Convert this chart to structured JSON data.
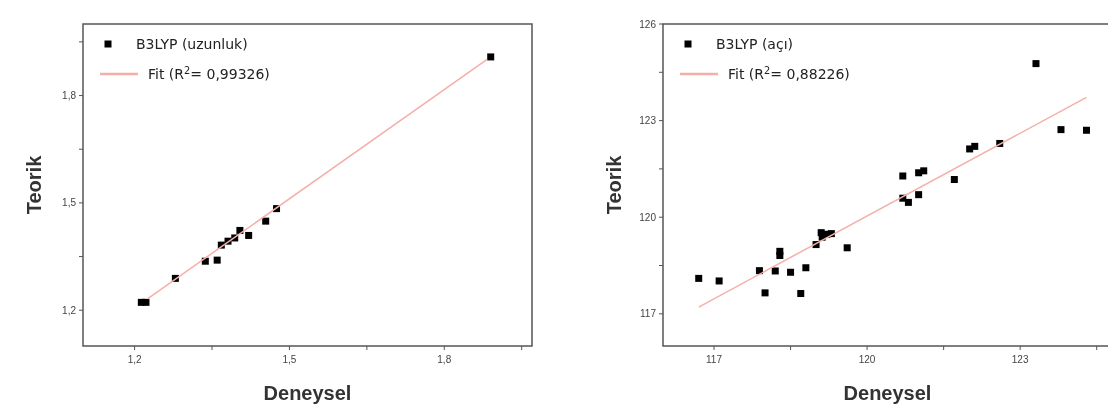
{
  "chart_data": [
    {
      "type": "scatter",
      "xlabel": "Deneysel",
      "ylabel": "Teorik",
      "xlim": [
        1.1,
        1.97
      ],
      "ylim": [
        1.1,
        2.0
      ],
      "xticks": [
        {
          "value": 1.2,
          "label": "1,2"
        },
        {
          "value": 1.35,
          "label": null
        },
        {
          "value": 1.5,
          "label": "1,5"
        },
        {
          "value": 1.65,
          "label": null
        },
        {
          "value": 1.8,
          "label": "1,8"
        },
        {
          "value": 1.95,
          "label": null
        }
      ],
      "yticks": [
        {
          "value": 1.2,
          "label": "1,2"
        },
        {
          "value": 1.35,
          "label": null
        },
        {
          "value": 1.5,
          "label": "1,5"
        },
        {
          "value": 1.65,
          "label": null
        },
        {
          "value": 1.8,
          "label": "1,8"
        },
        {
          "value": 1.95,
          "label": null
        }
      ],
      "legend": "top left",
      "marker": "square",
      "grid": false,
      "series": [
        {
          "name": "B3LYP (uzunluk)",
          "color": "#000000",
          "x": [
            1.213,
            1.222,
            1.279,
            1.337,
            1.36,
            1.368,
            1.381,
            1.394,
            1.404,
            1.421,
            1.454,
            1.475,
            1.89
          ],
          "values": [
            1.222,
            1.222,
            1.289,
            1.337,
            1.34,
            1.382,
            1.393,
            1.402,
            1.423,
            1.409,
            1.449,
            1.484,
            1.908
          ]
        },
        {
          "type": "line",
          "name": "Fit (R$^{2}$= 0,99326)",
          "color": "#f4b0a8",
          "marker": "none",
          "x": [
            1.225,
            1.883
          ],
          "values": [
            1.232,
            1.901
          ]
        }
      ]
    },
    {
      "type": "scatter",
      "xlabel": "Deneysel",
      "ylabel": "Teorik",
      "xlim": [
        116,
        124.8
      ],
      "ylim": [
        116,
        126
      ],
      "xticks": [
        117,
        {
          "value": 118.5,
          "label": null
        },
        120,
        {
          "value": 121.5,
          "label": null
        },
        123,
        {
          "value": 124.5,
          "label": null
        }
      ],
      "yticks": [
        117,
        {
          "value": 118.5,
          "label": null
        },
        120,
        {
          "value": 121.5,
          "label": null
        },
        123,
        {
          "value": 124.5,
          "label": null
        },
        126
      ],
      "legend": "top left",
      "marker": "square",
      "grid": false,
      "series": [
        {
          "name": "B3LYP (açı)",
          "color": "#000000",
          "x": [
            116.7,
            117.1,
            117.89,
            118.0,
            118.2,
            118.29,
            118.29,
            118.5,
            118.7,
            118.8,
            119.0,
            119.1,
            119.12,
            119.21,
            119.3,
            119.61,
            120.7,
            120.7,
            120.81,
            121.01,
            121.01,
            121.11,
            121.71,
            122.01,
            122.11,
            122.6,
            123.31,
            123.8,
            124.3
          ],
          "values": [
            118.1,
            118.02,
            118.34,
            117.65,
            118.33,
            118.94,
            118.81,
            118.29,
            117.63,
            118.43,
            119.15,
            119.52,
            119.38,
            119.47,
            119.49,
            119.05,
            121.28,
            120.59,
            120.46,
            120.7,
            121.38,
            121.44,
            121.17,
            122.12,
            122.2,
            122.29,
            124.77,
            122.72,
            122.7
          ]
        },
        {
          "type": "line",
          "name": "Fit (R$^{2}$= 0,88226)",
          "color": "#f4b0a8",
          "marker": "none",
          "x": [
            116.7,
            124.3
          ],
          "values": [
            117.21,
            123.72
          ]
        }
      ]
    }
  ]
}
